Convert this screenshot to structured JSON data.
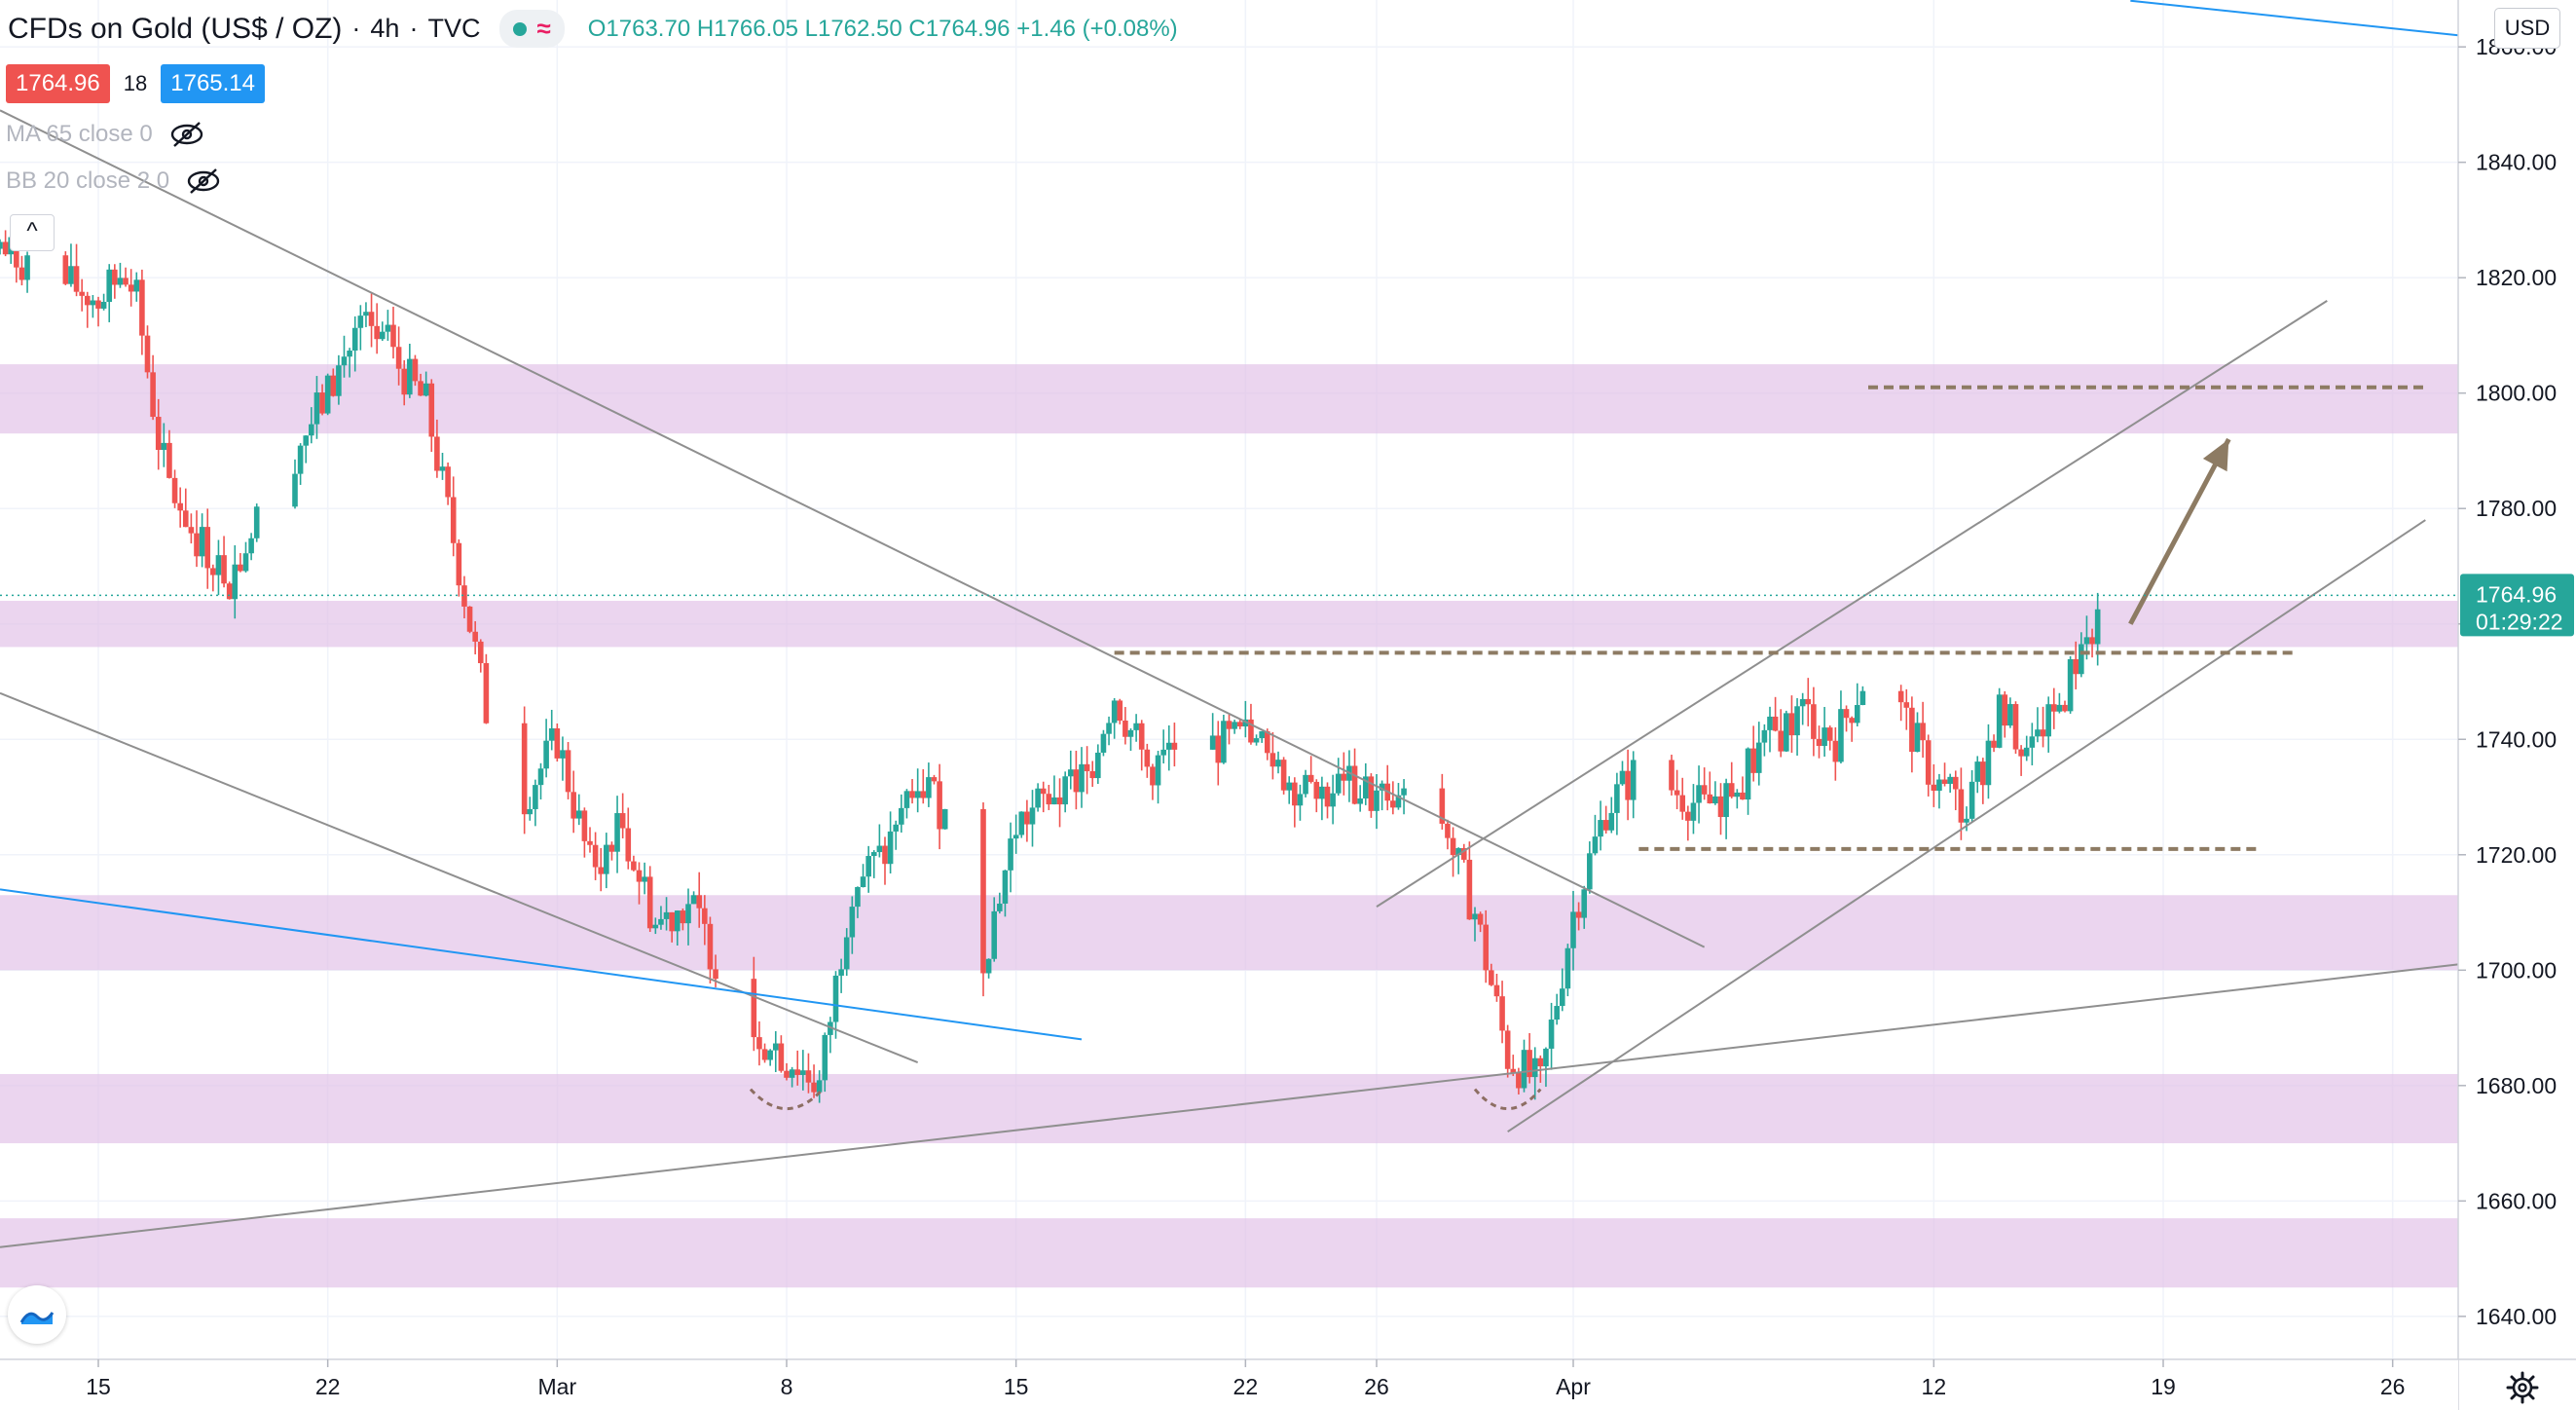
{
  "header": {
    "symbol": "CFDs on Gold (US$ / OZ)",
    "interval": "4h",
    "source": "TVC",
    "open_label": "O",
    "open": "1763.70",
    "high_label": "H",
    "high": "1766.05",
    "low_label": "L",
    "low": "1762.50",
    "close_label": "C",
    "close": "1764.96",
    "change": "+1.46 (+0.08%)",
    "bid": "1764.96",
    "spread": "18",
    "ask": "1765.14"
  },
  "indicators": [
    {
      "label": "MA 65 close 0"
    },
    {
      "label": "BB 20 close 2 0"
    }
  ],
  "collapse_glyph": "^",
  "currency": "USD",
  "price_label": {
    "value": "1764.96",
    "countdown": "01:29:22"
  },
  "icons": {
    "visibility": "eye-crossed-icon",
    "logo": "tradingview-logo-icon",
    "settings": "gear-icon",
    "collapse": "chevron-up-icon"
  },
  "colors": {
    "up": "#26a69a",
    "down": "#ef5350",
    "zone": "#e1bee7",
    "trend": "#8f8f8f",
    "level": "#8d7b63",
    "blue_line": "#2196f3",
    "arrow": "#8d7b63",
    "price_line": "#26a69a"
  },
  "chart_data": {
    "type": "candlestick",
    "y_axis": {
      "min": 1635,
      "max": 1865,
      "ticks": [
        "1640.00",
        "1660.00",
        "1680.00",
        "1700.00",
        "1720.00",
        "1740.00",
        "1760.00",
        "1780.00",
        "1800.00",
        "1820.00",
        "1840.00",
        "1860.00"
      ]
    },
    "x_axis": {
      "start": "2021-02-12",
      "end": "2021-04-28",
      "ticks": [
        {
          "date": "2021-02-15",
          "label": "15"
        },
        {
          "date": "2021-02-22",
          "label": "22"
        },
        {
          "date": "2021-03-01",
          "label": "Mar"
        },
        {
          "date": "2021-03-08",
          "label": "8"
        },
        {
          "date": "2021-03-15",
          "label": "15"
        },
        {
          "date": "2021-03-22",
          "label": "22"
        },
        {
          "date": "2021-03-26",
          "label": "26"
        },
        {
          "date": "2021-04-01",
          "label": "Apr"
        },
        {
          "date": "2021-04-12",
          "label": "12"
        },
        {
          "date": "2021-04-19",
          "label": "19"
        },
        {
          "date": "2021-04-26",
          "label": "26"
        }
      ]
    },
    "price_path": [
      [
        "2021-02-12",
        1825
      ],
      [
        "2021-02-15",
        1816
      ],
      [
        "2021-02-16",
        1822
      ],
      [
        "2021-02-17",
        1786
      ],
      [
        "2021-02-18",
        1775
      ],
      [
        "2021-02-19",
        1768
      ],
      [
        "2021-02-20",
        1780
      ],
      [
        "2021-02-22",
        1800
      ],
      [
        "2021-02-23",
        1812
      ],
      [
        "2021-02-24",
        1806
      ],
      [
        "2021-02-25",
        1798
      ],
      [
        "2021-02-26",
        1770
      ],
      [
        "2021-02-27",
        1740
      ],
      [
        "2021-02-28",
        1730
      ],
      [
        "2021-03-01",
        1740
      ],
      [
        "2021-03-02",
        1718
      ],
      [
        "2021-03-03",
        1725
      ],
      [
        "2021-03-04",
        1708
      ],
      [
        "2021-03-05",
        1712
      ],
      [
        "2021-03-06",
        1700
      ],
      [
        "2021-03-07",
        1690
      ],
      [
        "2021-03-08",
        1685
      ],
      [
        "2021-03-09",
        1680
      ],
      [
        "2021-03-10",
        1715
      ],
      [
        "2021-03-11",
        1720
      ],
      [
        "2021-03-12",
        1735
      ],
      [
        "2021-03-13",
        1725
      ],
      [
        "2021-03-14",
        1702
      ],
      [
        "2021-03-15",
        1725
      ],
      [
        "2021-03-16",
        1730
      ],
      [
        "2021-03-17",
        1733
      ],
      [
        "2021-03-18",
        1748
      ],
      [
        "2021-03-19",
        1735
      ],
      [
        "2021-03-20",
        1738
      ],
      [
        "2021-03-22",
        1740
      ],
      [
        "2021-03-23",
        1735
      ],
      [
        "2021-03-24",
        1730
      ],
      [
        "2021-03-25",
        1732
      ],
      [
        "2021-03-26",
        1730
      ],
      [
        "2021-03-27",
        1728
      ],
      [
        "2021-03-28",
        1726
      ],
      [
        "2021-03-29",
        1710
      ],
      [
        "2021-03-30",
        1685
      ],
      [
        "2021-03-31",
        1680
      ],
      [
        "2021-04-01",
        1710
      ],
      [
        "2021-04-02",
        1728
      ],
      [
        "2021-04-03",
        1735
      ],
      [
        "2021-04-05",
        1728
      ],
      [
        "2021-04-06",
        1733
      ],
      [
        "2021-04-07",
        1740
      ],
      [
        "2021-04-08",
        1745
      ],
      [
        "2021-04-09",
        1740
      ],
      [
        "2021-04-10",
        1752
      ],
      [
        "2021-04-11",
        1745
      ],
      [
        "2021-04-12",
        1733
      ],
      [
        "2021-04-13",
        1727
      ],
      [
        "2021-04-14",
        1745
      ],
      [
        "2021-04-15",
        1737
      ],
      [
        "2021-04-16",
        1748
      ],
      [
        "2021-04-17",
        1765
      ]
    ],
    "zones": [
      {
        "low": 1793,
        "high": 1805
      },
      {
        "low": 1756,
        "high": 1764
      },
      {
        "low": 1700,
        "high": 1713
      },
      {
        "low": 1670,
        "high": 1682
      },
      {
        "low": 1645,
        "high": 1657
      }
    ],
    "levels": [
      {
        "price": 1801,
        "from": "2021-04-10",
        "to": "2021-04-27"
      },
      {
        "price": 1755,
        "from": "2021-03-18",
        "to": "2021-04-23"
      },
      {
        "price": 1721,
        "from": "2021-04-03",
        "to": "2021-04-22"
      }
    ],
    "trendlines": [
      {
        "from": [
          "2021-02-12",
          1849
        ],
        "to": [
          "2021-04-05",
          1704
        ],
        "color": "trend"
      },
      {
        "from": [
          "2021-02-12",
          1748
        ],
        "to": [
          "2021-03-12",
          1684
        ],
        "color": "trend"
      },
      {
        "from": [
          "2021-02-12",
          1652
        ],
        "to": [
          "2021-04-28",
          1701
        ],
        "color": "trend"
      },
      {
        "from": [
          "2021-03-26",
          1711
        ],
        "to": [
          "2021-04-24",
          1816
        ],
        "color": "trend"
      },
      {
        "from": [
          "2021-03-30",
          1672
        ],
        "to": [
          "2021-04-27",
          1778
        ],
        "color": "trend"
      },
      {
        "from": [
          "2021-02-12",
          1714
        ],
        "to": [
          "2021-03-17",
          1688
        ],
        "color": "blue_line"
      },
      {
        "from": [
          "2021-04-18",
          1868
        ],
        "to": [
          "2021-04-28",
          1862
        ],
        "color": "blue_line"
      }
    ],
    "arrow": {
      "from": [
        "2021-04-18",
        1760
      ],
      "to": [
        "2021-04-21",
        1792
      ]
    },
    "lows_marks": [
      {
        "center": [
          "2021-03-08",
          1677
        ],
        "half_days": 1.1
      },
      {
        "center": [
          "2021-03-30",
          1677
        ],
        "half_days": 1.0
      }
    ],
    "current_price": 1764.96
  }
}
